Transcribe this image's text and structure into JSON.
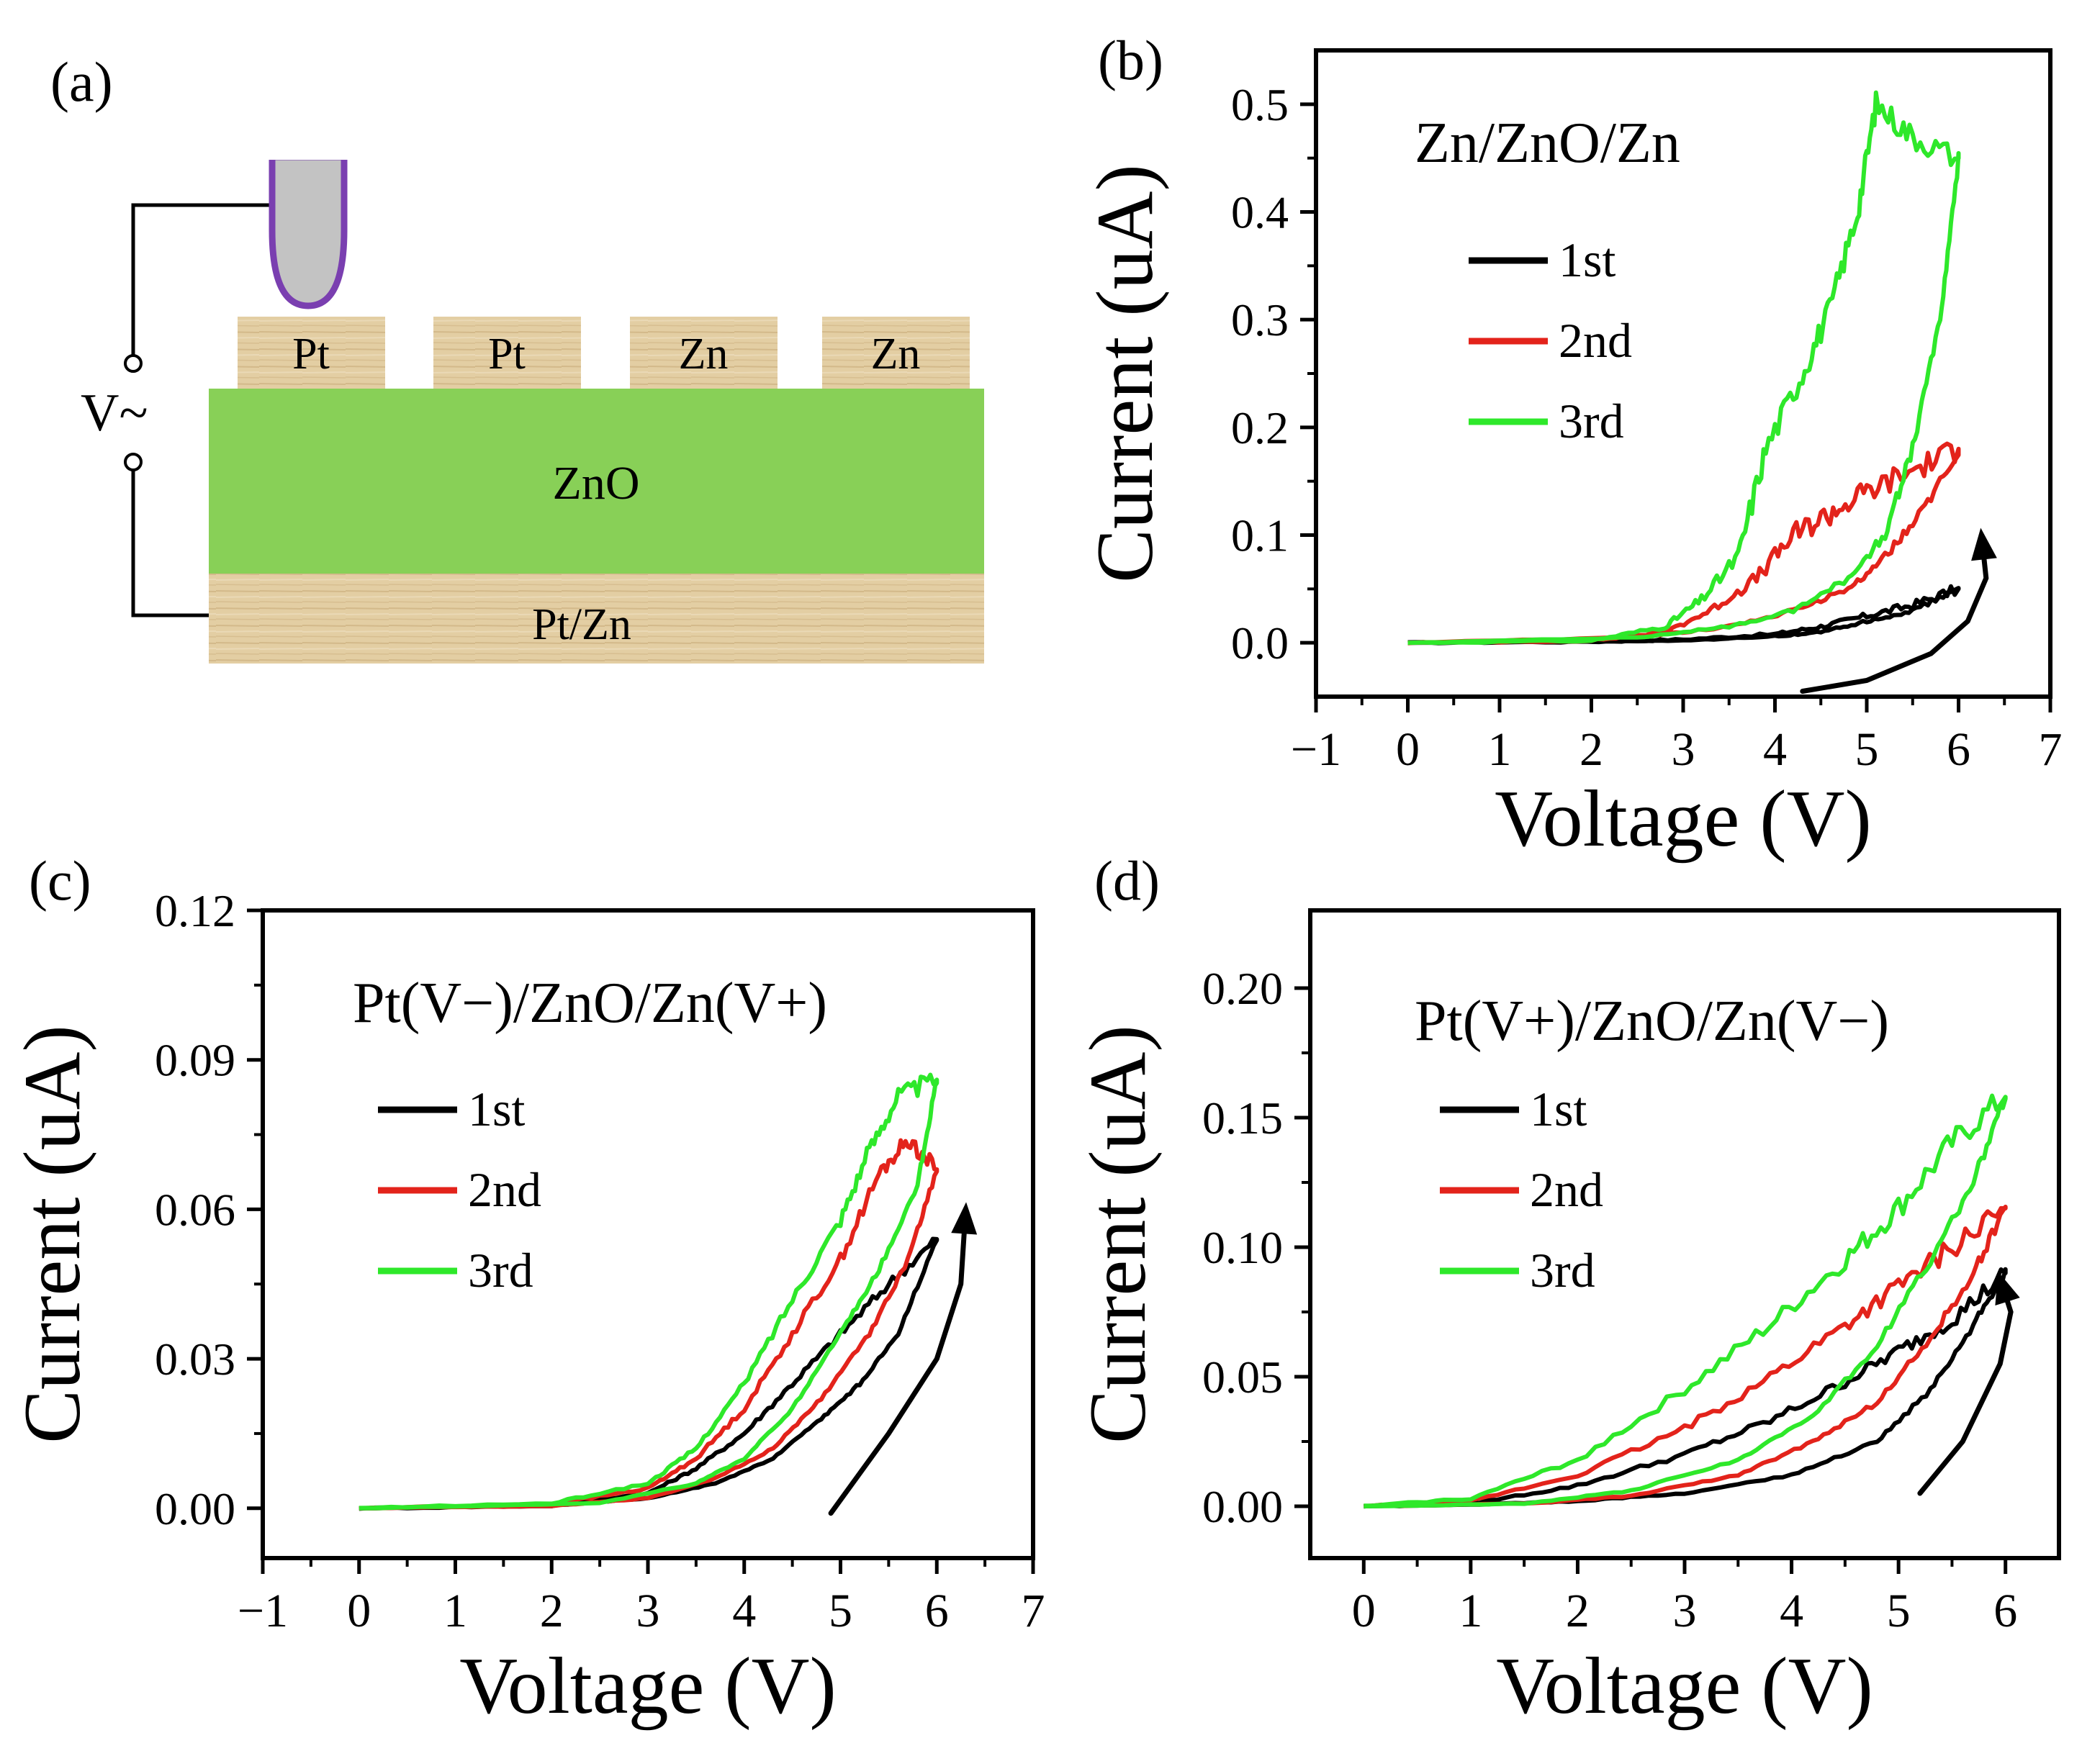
{
  "panels": {
    "a": {
      "label": "(a)",
      "voltage_label": "V~",
      "electrodes": [
        "Pt",
        "Pt",
        "Zn",
        "Zn"
      ],
      "layer_middle": "ZnO",
      "layer_bottom": "Pt/Zn",
      "colors": {
        "wood": "#e2cda2",
        "zno": "#88d057",
        "probe": "#c0c0c0",
        "probe_outline": "#7a3fb0"
      }
    }
  },
  "chart_data": [
    {
      "id": "b",
      "type": "line",
      "panel_label": "(b)",
      "title": "Zn/ZnO/Zn",
      "xlabel": "Voltage (V)",
      "ylabel": "Current (uA)",
      "xlim": [
        -1,
        7
      ],
      "ylim": [
        -0.05,
        0.55
      ],
      "xticks": [
        "−1",
        "0",
        "1",
        "2",
        "3",
        "4",
        "5",
        "6",
        "7"
      ],
      "yticks": [
        "0.0",
        "0.1",
        "0.2",
        "0.3",
        "0.4",
        "0.5"
      ],
      "ytick_values": [
        0.0,
        0.1,
        0.2,
        0.3,
        0.4,
        0.5
      ],
      "legend_position": "top-left",
      "series": [
        {
          "name": "1st",
          "color": "#000000",
          "up": [
            [
              0,
              0
            ],
            [
              2,
              0.001
            ],
            [
              3,
              0.003
            ],
            [
              4,
              0.008
            ],
            [
              4.5,
              0.015
            ],
            [
              5,
              0.025
            ],
            [
              5.5,
              0.035
            ],
            [
              6,
              0.05
            ]
          ],
          "down": [
            [
              6,
              0.05
            ],
            [
              5.5,
              0.03
            ],
            [
              5,
              0.02
            ],
            [
              4.5,
              0.01
            ],
            [
              4,
              0.006
            ],
            [
              3,
              0.002
            ],
            [
              2,
              0.001
            ],
            [
              0,
              0
            ]
          ]
        },
        {
          "name": "2nd",
          "color": "#e3231b",
          "up": [
            [
              0,
              0
            ],
            [
              2,
              0.002
            ],
            [
              2.8,
              0.01
            ],
            [
              3.3,
              0.03
            ],
            [
              3.8,
              0.06
            ],
            [
              4.2,
              0.1
            ],
            [
              4.6,
              0.12
            ],
            [
              5.0,
              0.14
            ],
            [
              5.5,
              0.16
            ],
            [
              6,
              0.18
            ]
          ],
          "down": [
            [
              6,
              0.18
            ],
            [
              5.6,
              0.12
            ],
            [
              5.2,
              0.08
            ],
            [
              4.8,
              0.05
            ],
            [
              4.2,
              0.03
            ],
            [
              3.5,
              0.015
            ],
            [
              2.5,
              0.005
            ],
            [
              0,
              0
            ]
          ]
        },
        {
          "name": "3rd",
          "color": "#2ee82a",
          "up": [
            [
              0,
              0
            ],
            [
              2,
              0.002
            ],
            [
              2.8,
              0.015
            ],
            [
              3.2,
              0.04
            ],
            [
              3.6,
              0.08
            ],
            [
              3.9,
              0.18
            ],
            [
              4.3,
              0.25
            ],
            [
              4.6,
              0.31
            ],
            [
              4.9,
              0.4
            ],
            [
              5.1,
              0.5
            ],
            [
              5.5,
              0.47
            ],
            [
              6,
              0.45
            ]
          ],
          "down": [
            [
              6,
              0.45
            ],
            [
              5.8,
              0.3
            ],
            [
              5.5,
              0.18
            ],
            [
              5.2,
              0.1
            ],
            [
              4.8,
              0.06
            ],
            [
              4.2,
              0.03
            ],
            [
              3.5,
              0.015
            ],
            [
              2.5,
              0.005
            ],
            [
              0,
              0
            ]
          ]
        }
      ],
      "arrow": [
        [
          4.3,
          -0.045
        ],
        [
          5.0,
          -0.035
        ],
        [
          5.7,
          -0.01
        ],
        [
          6.1,
          0.02
        ],
        [
          6.3,
          0.06
        ],
        [
          6.25,
          0.1
        ]
      ]
    },
    {
      "id": "c",
      "type": "line",
      "panel_label": "(c)",
      "title": "Pt(V−)/ZnO/Zn(V+)",
      "xlabel": "Voltage (V)",
      "ylabel": "Current (uA)",
      "xlim": [
        -1,
        7
      ],
      "ylim": [
        -0.01,
        0.12
      ],
      "xticks": [
        "−1",
        "0",
        "1",
        "2",
        "3",
        "4",
        "5",
        "6",
        "7"
      ],
      "yticks": [
        "0.00",
        "0.03",
        "0.06",
        "0.09",
        "0.12"
      ],
      "ytick_values": [
        0.0,
        0.03,
        0.06,
        0.09,
        0.12
      ],
      "legend_position": "top-left",
      "series": [
        {
          "name": "1st",
          "color": "#000000",
          "up": [
            [
              0,
              0
            ],
            [
              2,
              0.0005
            ],
            [
              3,
              0.003
            ],
            [
              3.5,
              0.008
            ],
            [
              4,
              0.015
            ],
            [
              4.5,
              0.025
            ],
            [
              5,
              0.035
            ],
            [
              5.5,
              0.045
            ],
            [
              6,
              0.054
            ]
          ],
          "down": [
            [
              6,
              0.054
            ],
            [
              5.6,
              0.035
            ],
            [
              5.2,
              0.025
            ],
            [
              4.8,
              0.018
            ],
            [
              4.3,
              0.01
            ],
            [
              3.7,
              0.005
            ],
            [
              3,
              0.002
            ],
            [
              2,
              0.0005
            ],
            [
              0,
              0
            ]
          ]
        },
        {
          "name": "2nd",
          "color": "#e3231b",
          "up": [
            [
              0,
              0
            ],
            [
              2,
              0.0008
            ],
            [
              3,
              0.004
            ],
            [
              3.5,
              0.01
            ],
            [
              4,
              0.02
            ],
            [
              4.5,
              0.035
            ],
            [
              5,
              0.05
            ],
            [
              5.4,
              0.067
            ],
            [
              5.7,
              0.074
            ],
            [
              6,
              0.068
            ]
          ],
          "down": [
            [
              6,
              0.068
            ],
            [
              5.7,
              0.05
            ],
            [
              5.3,
              0.035
            ],
            [
              4.8,
              0.022
            ],
            [
              4.3,
              0.012
            ],
            [
              3.7,
              0.006
            ],
            [
              3,
              0.002
            ],
            [
              2,
              0.0005
            ],
            [
              0,
              0
            ]
          ]
        },
        {
          "name": "3rd",
          "color": "#2ee82a",
          "up": [
            [
              0,
              0
            ],
            [
              2,
              0.001
            ],
            [
              3,
              0.005
            ],
            [
              3.5,
              0.012
            ],
            [
              4,
              0.025
            ],
            [
              4.5,
              0.042
            ],
            [
              5,
              0.058
            ],
            [
              5.3,
              0.072
            ],
            [
              5.6,
              0.083
            ],
            [
              6,
              0.086
            ]
          ],
          "down": [
            [
              6,
              0.086
            ],
            [
              5.8,
              0.065
            ],
            [
              5.4,
              0.048
            ],
            [
              5,
              0.035
            ],
            [
              4.5,
              0.02
            ],
            [
              4,
              0.01
            ],
            [
              3.5,
              0.005
            ],
            [
              2.5,
              0.001
            ],
            [
              0,
              0
            ]
          ]
        }
      ],
      "arrow": [
        [
          4.9,
          -0.001
        ],
        [
          5.5,
          0.015
        ],
        [
          6.0,
          0.03
        ],
        [
          6.25,
          0.045
        ],
        [
          6.3,
          0.06
        ]
      ]
    },
    {
      "id": "d",
      "type": "line",
      "panel_label": "(d)",
      "title": "Pt(V+)/ZnO/Zn(V−)",
      "xlabel": "Voltage (V)",
      "ylabel": "Current (uA)",
      "xlim": [
        -0.5,
        6.5
      ],
      "ylim": [
        -0.02,
        0.23
      ],
      "xticks": [
        "0",
        "1",
        "2",
        "3",
        "4",
        "5",
        "6"
      ],
      "yticks": [
        "0.00",
        "0.05",
        "0.10",
        "0.15",
        "0.20"
      ],
      "ytick_values": [
        0.0,
        0.05,
        0.1,
        0.15,
        0.2
      ],
      "legend_position": "top-left",
      "series": [
        {
          "name": "1st",
          "color": "#000000",
          "up": [
            [
              0,
              0
            ],
            [
              1,
              0.001
            ],
            [
              2,
              0.008
            ],
            [
              3,
              0.02
            ],
            [
              3.8,
              0.033
            ],
            [
              4.5,
              0.048
            ],
            [
              5,
              0.06
            ],
            [
              5.5,
              0.072
            ],
            [
              6,
              0.09
            ]
          ],
          "down": [
            [
              6,
              0.09
            ],
            [
              5.7,
              0.07
            ],
            [
              5.3,
              0.045
            ],
            [
              4.8,
              0.025
            ],
            [
              4,
              0.012
            ],
            [
              3,
              0.005
            ],
            [
              2,
              0.002
            ],
            [
              1,
              0.0005
            ],
            [
              0,
              0
            ]
          ]
        },
        {
          "name": "2nd",
          "color": "#e3231b",
          "up": [
            [
              0,
              0
            ],
            [
              1,
              0.002
            ],
            [
              2,
              0.012
            ],
            [
              3,
              0.03
            ],
            [
              3.8,
              0.05
            ],
            [
              4.5,
              0.07
            ],
            [
              5,
              0.085
            ],
            [
              5.5,
              0.1
            ],
            [
              6,
              0.115
            ]
          ],
          "down": [
            [
              6,
              0.115
            ],
            [
              5.7,
              0.09
            ],
            [
              5.3,
              0.065
            ],
            [
              4.8,
              0.04
            ],
            [
              4.2,
              0.025
            ],
            [
              3.5,
              0.012
            ],
            [
              2.5,
              0.004
            ],
            [
              1.5,
              0.001
            ],
            [
              0,
              0
            ]
          ]
        },
        {
          "name": "3rd",
          "color": "#2ee82a",
          "up": [
            [
              0,
              0
            ],
            [
              1,
              0.003
            ],
            [
              2,
              0.018
            ],
            [
              3,
              0.045
            ],
            [
              3.8,
              0.07
            ],
            [
              4.5,
              0.095
            ],
            [
              5,
              0.115
            ],
            [
              5.5,
              0.14
            ],
            [
              6,
              0.158
            ]
          ],
          "down": [
            [
              6,
              0.158
            ],
            [
              5.7,
              0.125
            ],
            [
              5.3,
              0.095
            ],
            [
              4.8,
              0.062
            ],
            [
              4.2,
              0.035
            ],
            [
              3.5,
              0.018
            ],
            [
              2.5,
              0.006
            ],
            [
              1.5,
              0.001
            ],
            [
              0,
              0
            ]
          ]
        }
      ],
      "arrow": [
        [
          5.2,
          0.005
        ],
        [
          5.6,
          0.025
        ],
        [
          5.95,
          0.055
        ],
        [
          6.05,
          0.075
        ],
        [
          5.95,
          0.088
        ]
      ]
    }
  ]
}
